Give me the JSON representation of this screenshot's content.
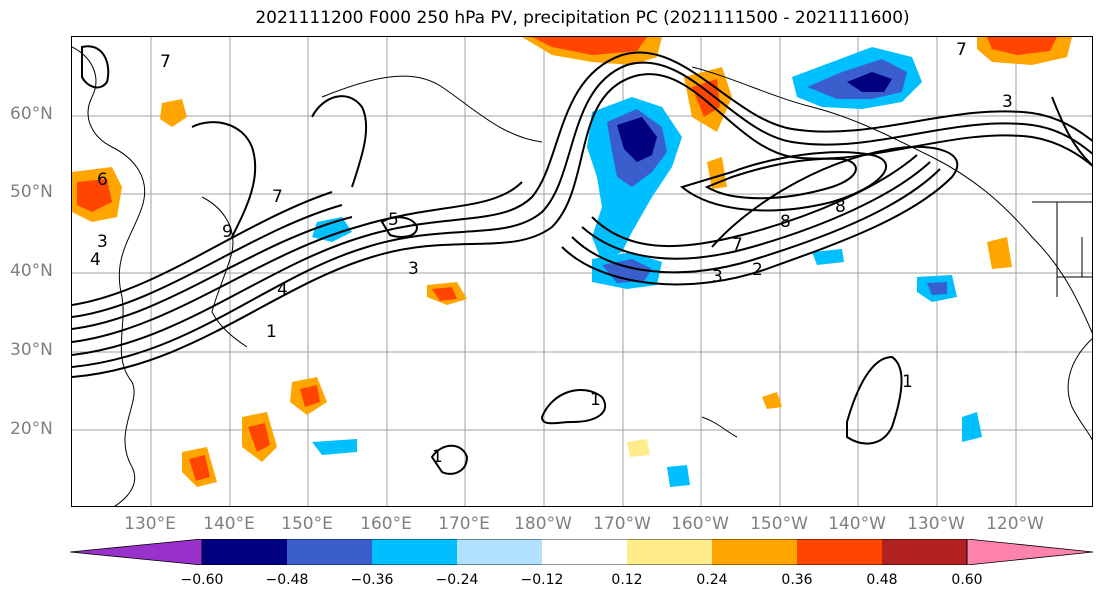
{
  "title": "2021111200 F000 250 hPa PV, precipitation PC (2021111500 - 2021111600)",
  "lat_ticks": [
    "60°N",
    "50°N",
    "40°N",
    "30°N",
    "20°N"
  ],
  "lon_ticks": [
    "130°E",
    "140°E",
    "150°E",
    "160°E",
    "170°E",
    "180°W",
    "170°W",
    "160°W",
    "150°W",
    "140°W",
    "130°W",
    "120°W"
  ],
  "colorbar": {
    "ticks": [
      "−0.60",
      "−0.48",
      "−0.36",
      "−0.24",
      "−0.12",
      "0.12",
      "0.24",
      "0.36",
      "0.48",
      "0.60"
    ],
    "colors": [
      "#9932CC",
      "#000080",
      "#3A5FCD",
      "#00BFFF",
      "#B0E2FF",
      "#FFFFFF",
      "#FFEC8B",
      "#FFA500",
      "#FF4500",
      "#B22222",
      "#FF82AB"
    ]
  },
  "contour_labels": [
    "7",
    "6",
    "3",
    "4",
    "5",
    "2",
    "1",
    "8",
    "9"
  ]
}
